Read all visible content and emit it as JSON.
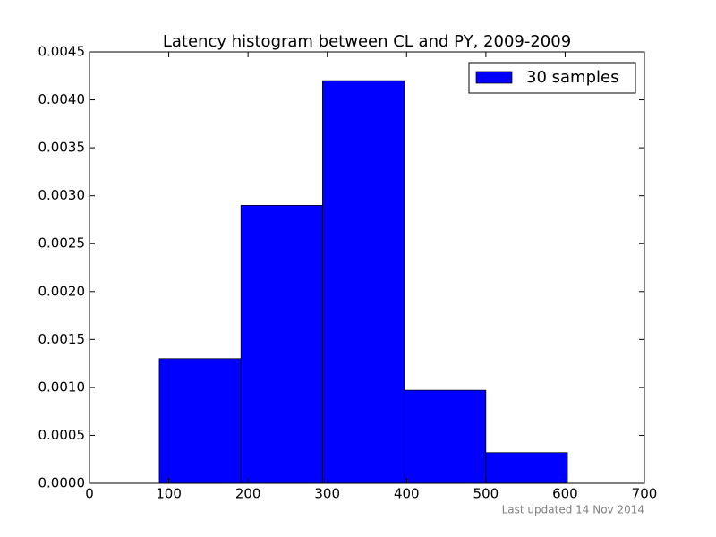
{
  "chart_data": {
    "type": "histogram",
    "title": "Latency histogram between CL and PY, 2009-2009",
    "bins": [
      88,
      191,
      294,
      397,
      500,
      603
    ],
    "series": [
      {
        "name": "30 samples",
        "color": "#0000ff",
        "values": [
          0.0013,
          0.0029,
          0.0042,
          0.00097,
          0.00032
        ]
      }
    ],
    "xlim": [
      0,
      700
    ],
    "xticks": [
      0,
      100,
      200,
      300,
      400,
      500,
      600,
      700
    ],
    "ylim": [
      0,
      0.0045
    ],
    "yticks": [
      {
        "value": 0,
        "label": "0.0000"
      },
      {
        "value": 0.0005,
        "label": "0.0005"
      },
      {
        "value": 0.001,
        "label": "0.0010"
      },
      {
        "value": 0.0015,
        "label": "0.0015"
      },
      {
        "value": 0.002,
        "label": "0.0020"
      },
      {
        "value": 0.0025,
        "label": "0.0025"
      },
      {
        "value": 0.003,
        "label": "0.0030"
      },
      {
        "value": 0.0035,
        "label": "0.0035"
      },
      {
        "value": 0.004,
        "label": "0.0040"
      },
      {
        "value": 0.0045,
        "label": "0.0045"
      }
    ],
    "grid": false,
    "legend": "upper right",
    "footnote": "Last updated 14 Nov 2014"
  }
}
